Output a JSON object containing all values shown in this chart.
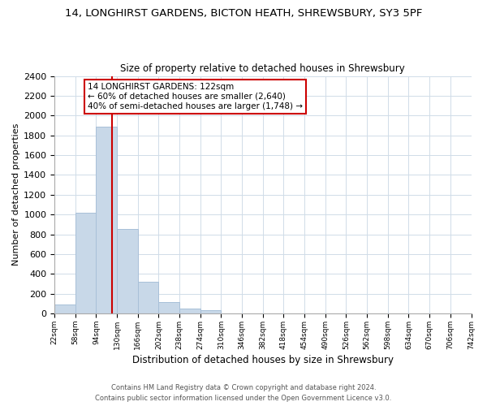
{
  "title_line1": "14, LONGHIRST GARDENS, BICTON HEATH, SHREWSBURY, SY3 5PF",
  "title_line2": "Size of property relative to detached houses in Shrewsbury",
  "xlabel": "Distribution of detached houses by size in Shrewsbury",
  "ylabel": "Number of detached properties",
  "bin_edges": [
    22,
    58,
    94,
    130,
    166,
    202,
    238,
    274,
    310,
    346,
    382,
    418,
    454,
    490,
    526,
    562,
    598,
    634,
    670,
    706,
    742
  ],
  "bar_heights": [
    90,
    1020,
    1890,
    855,
    320,
    115,
    50,
    35,
    0,
    0,
    0,
    0,
    0,
    0,
    0,
    0,
    0,
    0,
    0,
    0
  ],
  "bar_color": "#c8d8e8",
  "bar_edge_color": "#a8c0d8",
  "vline_x": 122,
  "vline_color": "#cc0000",
  "ylim": [
    0,
    2400
  ],
  "yticks": [
    0,
    200,
    400,
    600,
    800,
    1000,
    1200,
    1400,
    1600,
    1800,
    2000,
    2200,
    2400
  ],
  "annotation_box_text_line1": "14 LONGHIRST GARDENS: 122sqm",
  "annotation_box_text_line2": "← 60% of detached houses are smaller (2,640)",
  "annotation_box_text_line3": "40% of semi-detached houses are larger (1,748) →",
  "footer_line1": "Contains HM Land Registry data © Crown copyright and database right 2024.",
  "footer_line2": "Contains public sector information licensed under the Open Government Licence v3.0.",
  "background_color": "#ffffff",
  "grid_color": "#d0dce8"
}
